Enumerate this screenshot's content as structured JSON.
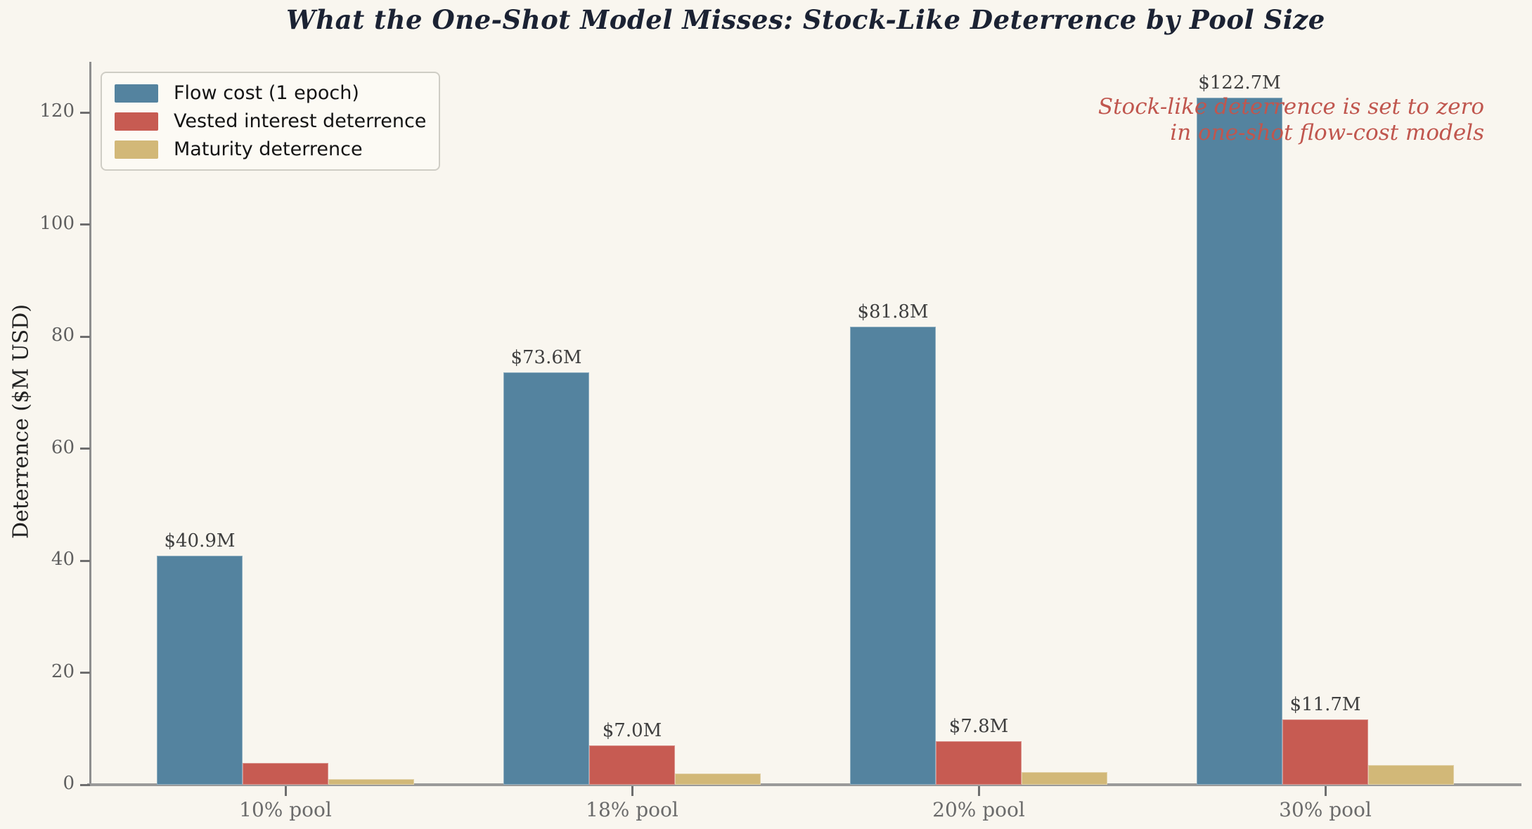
{
  "title": "What the One-Shot Model Misses: Stock-Like Deterrence by Pool Size",
  "colors": {
    "background": "#f9f6ef",
    "axis_spine": "#8f8f8f",
    "bottom_spine": "#9a9a9a",
    "tick_mark": "#6e6e6e",
    "tick_label": "#5f5f5f",
    "xtick_label": "#6b6b6b",
    "bar_label": "#3f3f3f",
    "title_color": "#1b2233",
    "ylabel_color": "#222222"
  },
  "chart_data": {
    "type": "bar",
    "title": "What the One-Shot Model Misses: Stock-Like Deterrence by Pool Size",
    "xlabel": "",
    "ylabel": "Deterrence ($M USD)",
    "categories": [
      "10% pool",
      "18% pool",
      "20% pool",
      "30% pool"
    ],
    "series": [
      {
        "name": "Flow cost (1 epoch)",
        "color": "#54839f",
        "values": [
          40.9,
          73.6,
          81.8,
          122.7
        ],
        "labels": [
          "$40.9M",
          "$73.6M",
          "$81.8M",
          "$122.7M"
        ]
      },
      {
        "name": "Vested interest deterrence",
        "color": "#c75b52",
        "values": [
          3.9,
          7.0,
          7.8,
          11.7
        ],
        "labels": [
          null,
          "$7.0M",
          "$7.8M",
          "$11.7M"
        ]
      },
      {
        "name": "Maturity deterrence",
        "color": "#d2b878",
        "values": [
          1.0,
          2.0,
          2.3,
          3.5
        ],
        "labels": [
          null,
          null,
          null,
          null
        ]
      }
    ],
    "ylim": [
      0,
      128.8
    ],
    "yticks": [
      0,
      20,
      40,
      60,
      80,
      100,
      120
    ],
    "grid": false,
    "legend_position": "upper left",
    "annotation": {
      "text": "Stock-like deterrence is set to zero\nin one-shot flow-cost models",
      "color": "#c0564e"
    }
  }
}
